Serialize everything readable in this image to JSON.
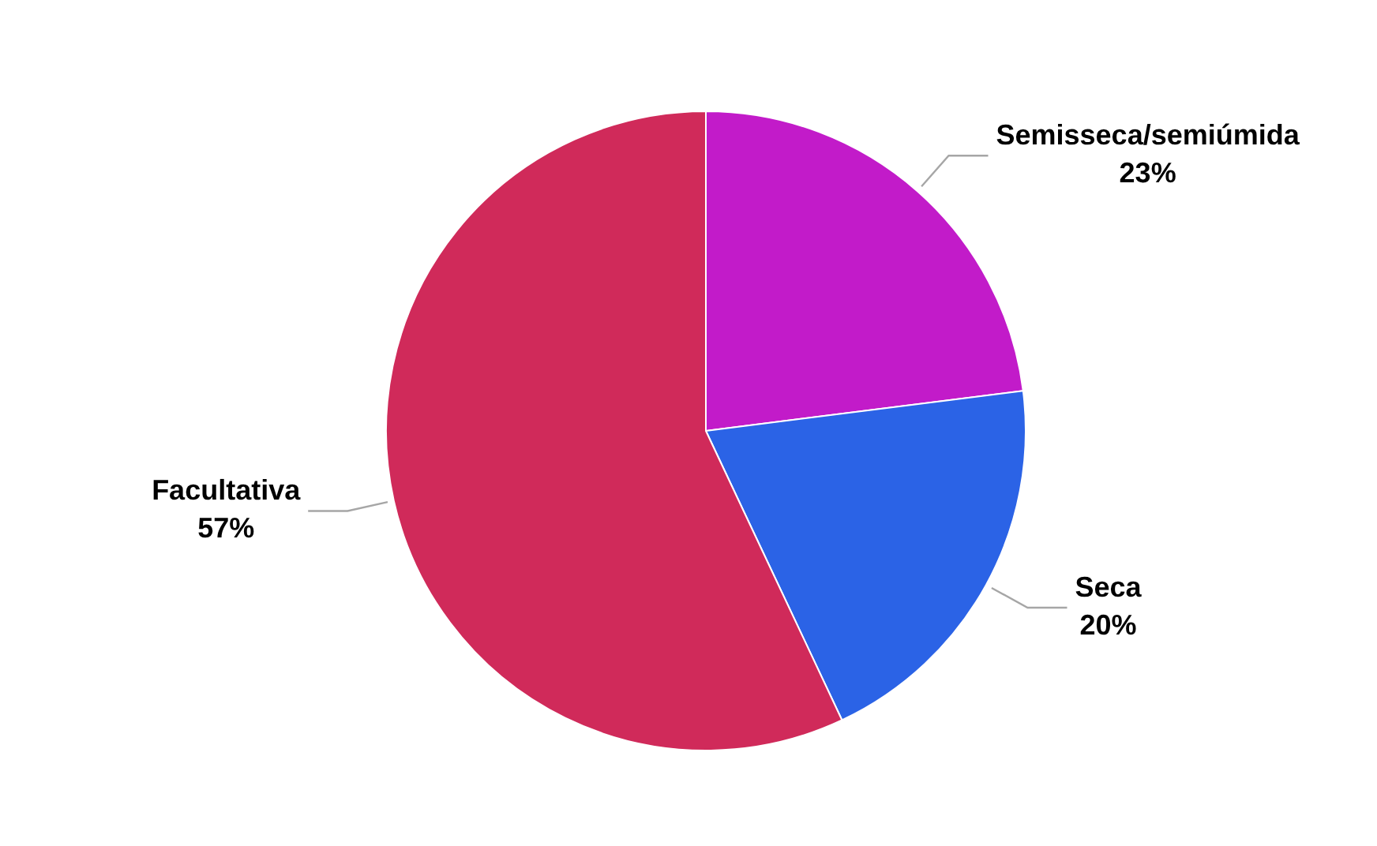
{
  "chart_data": {
    "type": "pie",
    "categories": [
      "Semisseca/semiúmida",
      "Seca",
      "Facultativa"
    ],
    "values": [
      23,
      20,
      57
    ],
    "value_labels": [
      "23%",
      "20%",
      "57%"
    ],
    "colors": [
      "#c21bc9",
      "#2b63e6",
      "#d02a5a"
    ],
    "legend": false
  }
}
